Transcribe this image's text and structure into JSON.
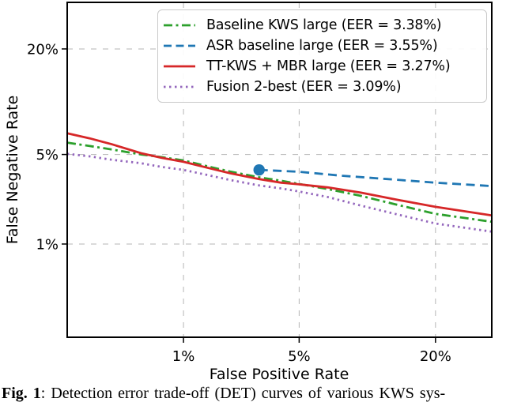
{
  "figure": {
    "caption_prefix": "Fig. 1",
    "caption_rest": ": Detection error trade-off (DET) curves of various KWS sys-"
  },
  "chart_data": {
    "type": "line",
    "subtype": "DET-curve",
    "xlabel": "False Positive Rate",
    "ylabel": "False Negative Rate",
    "x_scale": "probit",
    "y_scale": "probit",
    "xlim_pct": [
      0.13,
      30.5
    ],
    "ylim_pct": [
      0.12,
      31.3
    ],
    "x_ticks_pct": [
      1,
      5,
      20
    ],
    "y_ticks_pct": [
      1,
      5,
      20
    ],
    "x_tick_labels": [
      "1%",
      "5%",
      "20%"
    ],
    "y_tick_labels": [
      "1%",
      "5%",
      "20%"
    ],
    "grid": "dashed",
    "legend_position": "upper center",
    "series": [
      {
        "name": "Baseline KWS large (EER = 3.38%)",
        "eer_pct": 3.38,
        "color": "#2ca02c",
        "style": "dash-dot",
        "fpr_pct": [
          0.13,
          0.2,
          0.3,
          0.5,
          0.7,
          1.0,
          1.5,
          2.0,
          3.0,
          4.0,
          5.0,
          7.0,
          10.0,
          14.0,
          20.0,
          30.5
        ],
        "fnr_pct": [
          6.0,
          5.7,
          5.4,
          5.0,
          4.8,
          4.55,
          4.1,
          3.8,
          3.45,
          3.25,
          3.08,
          2.82,
          2.5,
          2.15,
          1.8,
          1.55
        ]
      },
      {
        "name": "ASR baseline large (EER = 3.55%)",
        "eer_pct": 3.55,
        "color": "#1f77b4",
        "style": "dashed",
        "marker": {
          "shape": "circle",
          "fpr_pct": 3.0,
          "fnr_pct": 3.9
        },
        "fpr_pct": [
          3.0,
          5.0,
          8.0,
          13.0,
          20.0,
          30.5
        ],
        "fnr_pct": [
          3.9,
          3.78,
          3.55,
          3.35,
          3.15,
          2.97
        ]
      },
      {
        "name": "TT-KWS + MBR large (EER = 3.27%)",
        "eer_pct": 3.27,
        "color": "#d62728",
        "style": "solid",
        "fpr_pct": [
          0.13,
          0.2,
          0.3,
          0.5,
          0.7,
          1.0,
          1.5,
          2.0,
          3.0,
          4.0,
          5.0,
          7.0,
          10.0,
          14.0,
          20.0,
          30.5
        ],
        "fnr_pct": [
          6.9,
          6.4,
          5.85,
          5.1,
          4.75,
          4.45,
          4.0,
          3.7,
          3.35,
          3.15,
          3.06,
          2.9,
          2.65,
          2.35,
          2.05,
          1.75
        ]
      },
      {
        "name": "Fusion 2-best (EER = 3.09%)",
        "eer_pct": 3.09,
        "color": "#9467bd",
        "style": "dotted",
        "fpr_pct": [
          0.13,
          0.2,
          0.3,
          0.5,
          0.7,
          1.0,
          1.5,
          2.0,
          3.0,
          4.0,
          5.0,
          7.0,
          10.0,
          14.0,
          20.0,
          30.5
        ],
        "fnr_pct": [
          5.05,
          4.85,
          4.6,
          4.35,
          4.1,
          3.9,
          3.55,
          3.3,
          3.0,
          2.85,
          2.7,
          2.45,
          2.1,
          1.8,
          1.5,
          1.28
        ]
      }
    ]
  }
}
